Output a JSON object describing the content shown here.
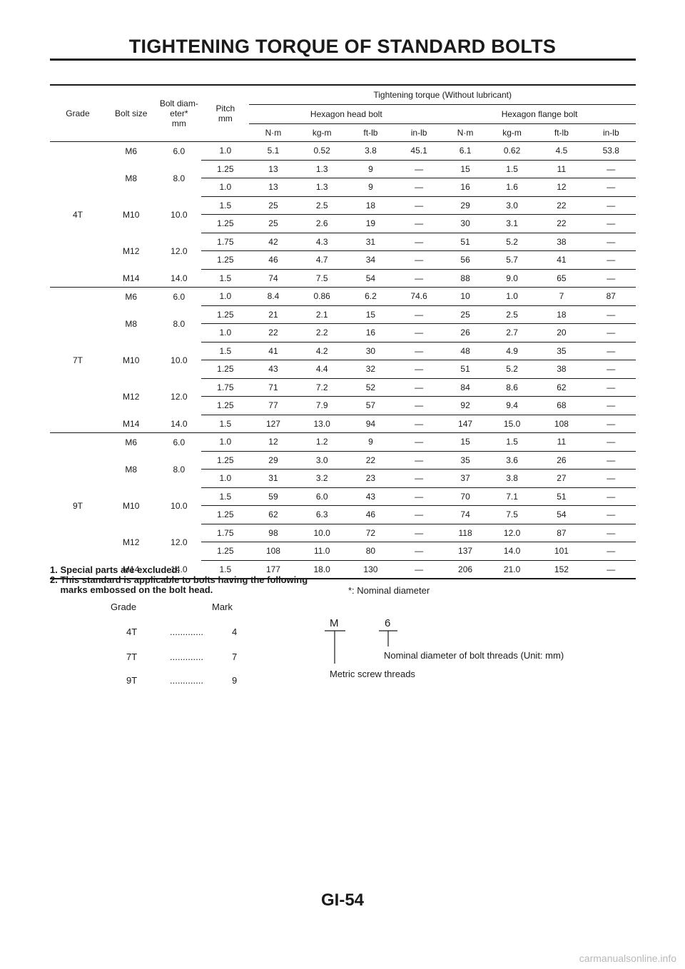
{
  "page": {
    "title": "TIGHTENING TORQUE OF STANDARD BOLTS",
    "page_number": "GI-54",
    "watermark": "carmanualsonline.info"
  },
  "table": {
    "headers": {
      "grade": "Grade",
      "bolt_size": "Bolt size",
      "bolt_diameter": [
        "Bolt diam-",
        "eter*",
        "mm"
      ],
      "pitch": [
        "Pitch",
        "mm"
      ],
      "torque_group": "Tightening torque (Without lubricant)",
      "hex_head": "Hexagon head bolt",
      "hex_flange": "Hexagon flange bolt",
      "units": [
        "N·m",
        "kg-m",
        "ft-lb",
        "in-lb",
        "N·m",
        "kg-m",
        "ft-lb",
        "in-lb"
      ]
    },
    "grades": [
      {
        "grade": "4T",
        "sizes": [
          {
            "size": "M6",
            "diameter": "6.0",
            "rows": [
              [
                "1.0",
                "5.1",
                "0.52",
                "3.8",
                "45.1",
                "6.1",
                "0.62",
                "4.5",
                "53.8"
              ]
            ]
          },
          {
            "size": "M8",
            "diameter": "8.0",
            "rows": [
              [
                "1.25",
                "13",
                "1.3",
                "9",
                "—",
                "15",
                "1.5",
                "11",
                "—"
              ],
              [
                "1.0",
                "13",
                "1.3",
                "9",
                "—",
                "16",
                "1.6",
                "12",
                "—"
              ]
            ]
          },
          {
            "size": "M10",
            "diameter": "10.0",
            "rows": [
              [
                "1.5",
                "25",
                "2.5",
                "18",
                "—",
                "29",
                "3.0",
                "22",
                "—"
              ],
              [
                "1.25",
                "25",
                "2.6",
                "19",
                "—",
                "30",
                "3.1",
                "22",
                "—"
              ]
            ]
          },
          {
            "size": "M12",
            "diameter": "12.0",
            "rows": [
              [
                "1.75",
                "42",
                "4.3",
                "31",
                "—",
                "51",
                "5.2",
                "38",
                "—"
              ],
              [
                "1.25",
                "46",
                "4.7",
                "34",
                "—",
                "56",
                "5.7",
                "41",
                "—"
              ]
            ]
          },
          {
            "size": "M14",
            "diameter": "14.0",
            "rows": [
              [
                "1.5",
                "74",
                "7.5",
                "54",
                "—",
                "88",
                "9.0",
                "65",
                "—"
              ]
            ]
          }
        ]
      },
      {
        "grade": "7T",
        "sizes": [
          {
            "size": "M6",
            "diameter": "6.0",
            "rows": [
              [
                "1.0",
                "8.4",
                "0.86",
                "6.2",
                "74.6",
                "10",
                "1.0",
                "7",
                "87"
              ]
            ]
          },
          {
            "size": "M8",
            "diameter": "8.0",
            "rows": [
              [
                "1.25",
                "21",
                "2.1",
                "15",
                "—",
                "25",
                "2.5",
                "18",
                "—"
              ],
              [
                "1.0",
                "22",
                "2.2",
                "16",
                "—",
                "26",
                "2.7",
                "20",
                "—"
              ]
            ]
          },
          {
            "size": "M10",
            "diameter": "10.0",
            "rows": [
              [
                "1.5",
                "41",
                "4.2",
                "30",
                "—",
                "48",
                "4.9",
                "35",
                "—"
              ],
              [
                "1.25",
                "43",
                "4.4",
                "32",
                "—",
                "51",
                "5.2",
                "38",
                "—"
              ]
            ]
          },
          {
            "size": "M12",
            "diameter": "12.0",
            "rows": [
              [
                "1.75",
                "71",
                "7.2",
                "52",
                "—",
                "84",
                "8.6",
                "62",
                "—"
              ],
              [
                "1.25",
                "77",
                "7.9",
                "57",
                "—",
                "92",
                "9.4",
                "68",
                "—"
              ]
            ]
          },
          {
            "size": "M14",
            "diameter": "14.0",
            "rows": [
              [
                "1.5",
                "127",
                "13.0",
                "94",
                "—",
                "147",
                "15.0",
                "108",
                "—"
              ]
            ]
          }
        ]
      },
      {
        "grade": "9T",
        "sizes": [
          {
            "size": "M6",
            "diameter": "6.0",
            "rows": [
              [
                "1.0",
                "12",
                "1.2",
                "9",
                "—",
                "15",
                "1.5",
                "11",
                "—"
              ]
            ]
          },
          {
            "size": "M8",
            "diameter": "8.0",
            "rows": [
              [
                "1.25",
                "29",
                "3.0",
                "22",
                "—",
                "35",
                "3.6",
                "26",
                "—"
              ],
              [
                "1.0",
                "31",
                "3.2",
                "23",
                "—",
                "37",
                "3.8",
                "27",
                "—"
              ]
            ]
          },
          {
            "size": "M10",
            "diameter": "10.0",
            "rows": [
              [
                "1.5",
                "59",
                "6.0",
                "43",
                "—",
                "70",
                "7.1",
                "51",
                "—"
              ],
              [
                "1.25",
                "62",
                "6.3",
                "46",
                "—",
                "74",
                "7.5",
                "54",
                "—"
              ]
            ]
          },
          {
            "size": "M12",
            "diameter": "12.0",
            "rows": [
              [
                "1.75",
                "98",
                "10.0",
                "72",
                "—",
                "118",
                "12.0",
                "87",
                "—"
              ],
              [
                "1.25",
                "108",
                "11.0",
                "80",
                "—",
                "137",
                "14.0",
                "101",
                "—"
              ]
            ]
          },
          {
            "size": "M14",
            "diameter": "14.0",
            "rows": [
              [
                "1.5",
                "177",
                "18.0",
                "130",
                "—",
                "206",
                "21.0",
                "152",
                "—"
              ]
            ]
          }
        ]
      }
    ]
  },
  "notes": {
    "lines": [
      "1. Special parts are excluded.",
      "2. This standard is applicable to bolts having the following",
      "    marks embossed on the bolt head."
    ],
    "nominal": "*: Nominal diameter"
  },
  "marks": {
    "grade_header": "Grade",
    "mark_header": "Mark",
    "dots": ".............",
    "rows": [
      {
        "grade": "4T",
        "mark": "4"
      },
      {
        "grade": "7T",
        "mark": "7"
      },
      {
        "grade": "9T",
        "mark": "9"
      }
    ]
  },
  "designation": {
    "letter": "M",
    "number": "6",
    "number_label": "Nominal diameter of bolt threads (Unit: mm)",
    "letter_label": "Metric screw threads"
  }
}
